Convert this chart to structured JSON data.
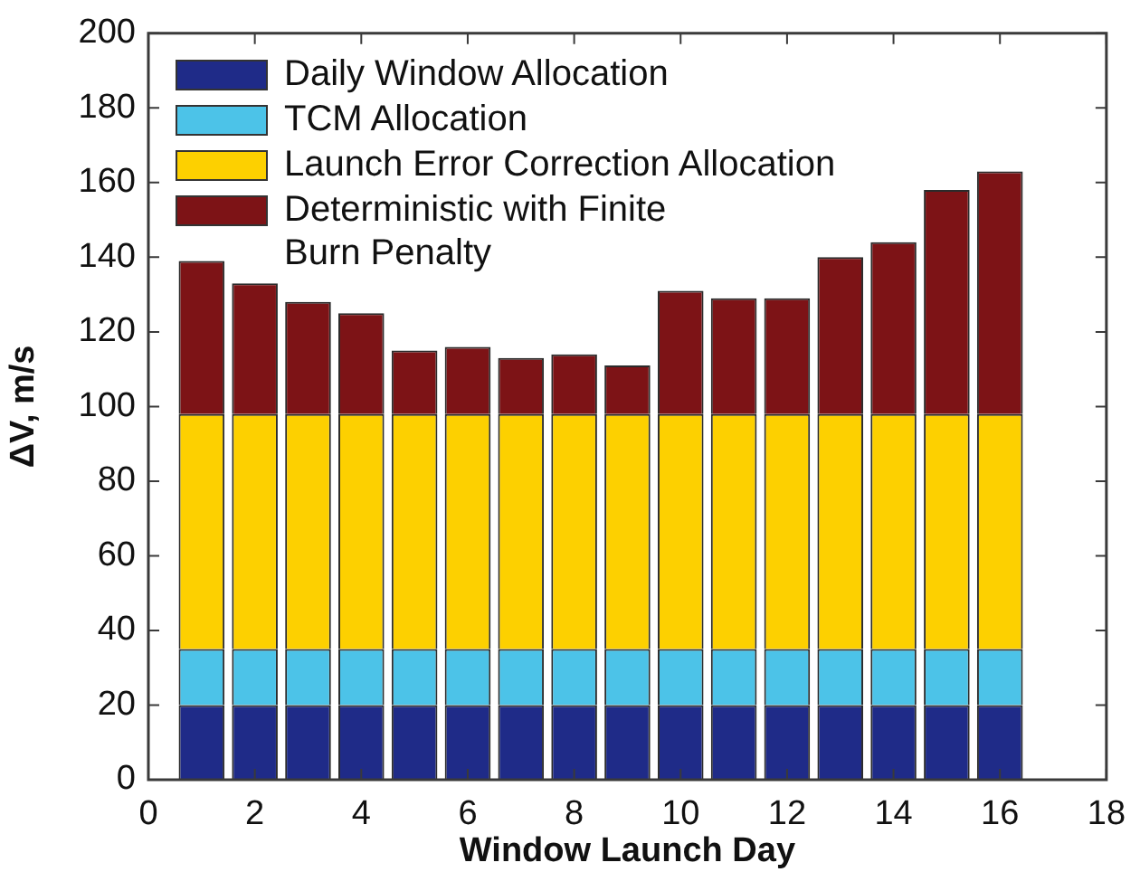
{
  "chart_data": {
    "type": "bar",
    "stacked": true,
    "x": [
      1,
      2,
      3,
      4,
      5,
      6,
      7,
      8,
      9,
      10,
      11,
      12,
      13,
      14,
      15,
      16
    ],
    "xlim": [
      0,
      18
    ],
    "xticks": [
      0,
      2,
      4,
      6,
      8,
      10,
      12,
      14,
      16,
      18
    ],
    "ylim": [
      0,
      200
    ],
    "yticks": [
      0,
      20,
      40,
      60,
      80,
      100,
      120,
      140,
      160,
      180,
      200
    ],
    "xlabel": "Window Launch Day",
    "ylabel": "ΔV, m/s",
    "legend": "top left",
    "series": [
      {
        "name": "Daily Window Allocation",
        "color": "#1f2b88",
        "values": [
          20,
          20,
          20,
          20,
          20,
          20,
          20,
          20,
          20,
          20,
          20,
          20,
          20,
          20,
          20,
          20
        ]
      },
      {
        "name": "TCM Allocation",
        "color": "#4cc3e8",
        "values": [
          15,
          15,
          15,
          15,
          15,
          15,
          15,
          15,
          15,
          15,
          15,
          15,
          15,
          15,
          15,
          15
        ]
      },
      {
        "name": "Launch Error Correction Allocation",
        "color": "#fdd000",
        "values": [
          63,
          63,
          63,
          63,
          63,
          63,
          63,
          63,
          63,
          63,
          63,
          63,
          63,
          63,
          63,
          63
        ]
      },
      {
        "name": "Deterministic with Finite\nBurn Penalty",
        "color": "#7d1316",
        "values": [
          41,
          35,
          30,
          27,
          17,
          18,
          15,
          16,
          13,
          33,
          31,
          31,
          42,
          46,
          60,
          65
        ]
      }
    ]
  }
}
